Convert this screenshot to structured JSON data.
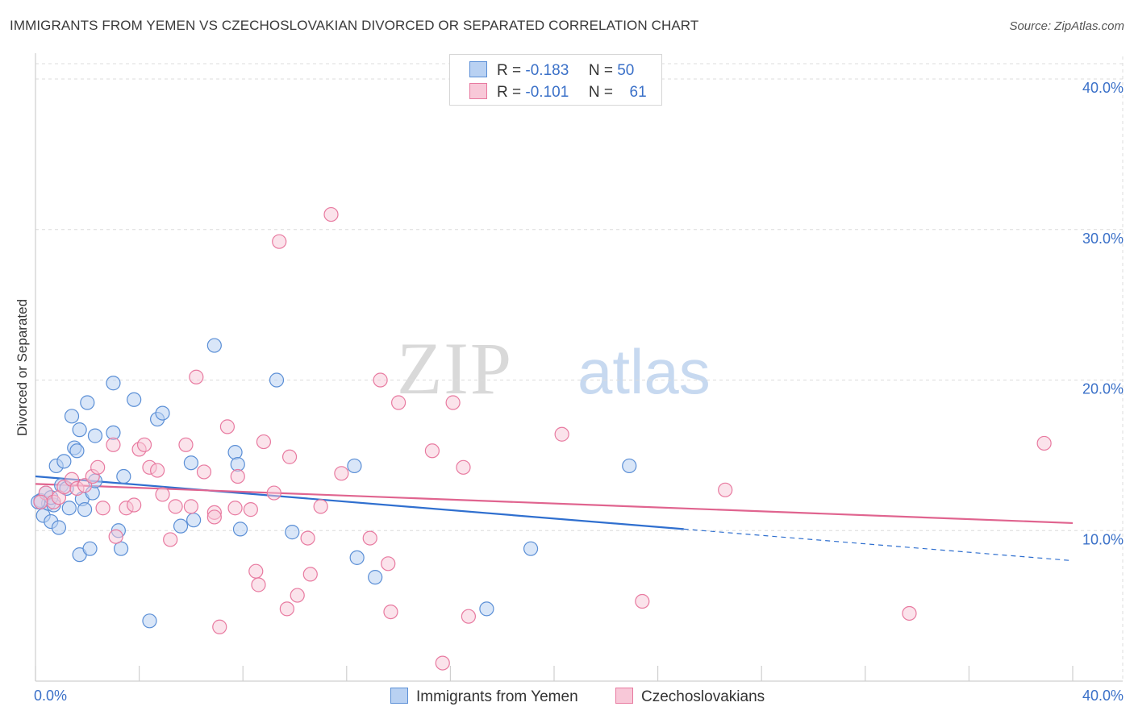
{
  "title": "IMMIGRANTS FROM YEMEN VS CZECHOSLOVAKIAN DIVORCED OR SEPARATED CORRELATION CHART",
  "source": "Source: ZipAtlas.com",
  "watermark": {
    "zip": "ZIP",
    "atlas": "atlas"
  },
  "legend": {
    "rows": [
      {
        "r_label": "R =",
        "r_value": "-0.183",
        "n_label": "N =",
        "n_value": "50"
      },
      {
        "r_label": "R =",
        "r_value": "-0.101",
        "n_label": "N =",
        "n_value": "61"
      }
    ]
  },
  "bottom_legend": {
    "series1": "Immigrants from Yemen",
    "series2": "Czechoslovakians"
  },
  "colors": {
    "blue": "#5b8fd6",
    "blue_fill": "#b9d1f2",
    "blue_line": "#2f6fcf",
    "pink": "#e87aa0",
    "pink_fill": "#f8c8d8",
    "pink_line": "#e0648f",
    "axis_text": "#3a70c8"
  },
  "chart_data": {
    "type": "scatter",
    "title": "IMMIGRANTS FROM YEMEN VS CZECHOSLOVAKIAN DIVORCED OR SEPARATED CORRELATION CHART",
    "xlabel": "",
    "ylabel": "Divorced or Separated",
    "xlim": [
      0,
      40
    ],
    "ylim": [
      0,
      41.5
    ],
    "x_tick_labels": [
      "0.0%",
      "40.0%"
    ],
    "y_ticks": [
      10,
      20,
      30,
      40
    ],
    "y_tick_labels": [
      "10.0%",
      "20.0%",
      "30.0%",
      "40.0%"
    ],
    "grid": true,
    "legend_position": "top-center",
    "series": [
      {
        "name": "Immigrants from Yemen",
        "r": -0.183,
        "n": 50,
        "trend": {
          "x0": 0,
          "y0": 13.6,
          "x1": 25,
          "y1": 10.1,
          "dashed_to_x": 40,
          "dashed_to_y": 8.0
        },
        "points": [
          [
            0.2,
            12.0
          ],
          [
            0.3,
            11.0
          ],
          [
            0.4,
            12.5
          ],
          [
            0.5,
            11.8
          ],
          [
            0.6,
            10.6
          ],
          [
            0.7,
            11.7
          ],
          [
            0.8,
            14.3
          ],
          [
            0.9,
            10.2
          ],
          [
            1.0,
            13.0
          ],
          [
            1.1,
            14.6
          ],
          [
            1.2,
            12.8
          ],
          [
            1.3,
            11.5
          ],
          [
            1.4,
            17.6
          ],
          [
            1.5,
            15.5
          ],
          [
            1.6,
            15.3
          ],
          [
            1.7,
            16.7
          ],
          [
            1.7,
            8.4
          ],
          [
            1.8,
            12.1
          ],
          [
            1.9,
            11.4
          ],
          [
            2.0,
            18.5
          ],
          [
            2.1,
            8.8
          ],
          [
            2.2,
            12.5
          ],
          [
            2.3,
            16.3
          ],
          [
            2.3,
            13.3
          ],
          [
            3.0,
            16.5
          ],
          [
            3.0,
            19.8
          ],
          [
            3.2,
            10.0
          ],
          [
            3.3,
            8.8
          ],
          [
            3.4,
            13.6
          ],
          [
            3.8,
            18.7
          ],
          [
            4.4,
            4.0
          ],
          [
            4.7,
            17.4
          ],
          [
            4.9,
            17.8
          ],
          [
            5.6,
            10.3
          ],
          [
            6.0,
            14.5
          ],
          [
            6.1,
            10.7
          ],
          [
            6.9,
            22.3
          ],
          [
            7.7,
            15.2
          ],
          [
            7.8,
            14.4
          ],
          [
            7.9,
            10.1
          ],
          [
            9.3,
            20.0
          ],
          [
            9.9,
            9.9
          ],
          [
            12.3,
            14.3
          ],
          [
            12.4,
            8.2
          ],
          [
            13.1,
            6.9
          ],
          [
            17.4,
            4.8
          ],
          [
            19.1,
            8.8
          ],
          [
            22.9,
            14.3
          ],
          [
            0.6,
            12.2
          ],
          [
            0.1,
            11.9
          ]
        ]
      },
      {
        "name": "Czechoslovakians",
        "r": -0.101,
        "n": 61,
        "trend": {
          "x0": 0,
          "y0": 13.1,
          "x1": 40,
          "y1": 10.5
        },
        "points": [
          [
            0.4,
            12.5
          ],
          [
            0.7,
            11.9
          ],
          [
            0.9,
            12.2
          ],
          [
            1.1,
            12.9
          ],
          [
            1.4,
            13.4
          ],
          [
            1.6,
            12.8
          ],
          [
            1.9,
            13.0
          ],
          [
            2.2,
            13.6
          ],
          [
            2.4,
            14.2
          ],
          [
            2.6,
            11.5
          ],
          [
            3.0,
            15.7
          ],
          [
            3.1,
            9.6
          ],
          [
            3.5,
            11.5
          ],
          [
            3.8,
            11.7
          ],
          [
            4.0,
            15.4
          ],
          [
            4.2,
            15.7
          ],
          [
            4.4,
            14.2
          ],
          [
            4.7,
            14.0
          ],
          [
            4.9,
            12.4
          ],
          [
            5.2,
            9.4
          ],
          [
            5.4,
            11.6
          ],
          [
            5.8,
            15.7
          ],
          [
            6.0,
            11.6
          ],
          [
            6.2,
            20.2
          ],
          [
            6.5,
            13.9
          ],
          [
            6.9,
            11.2
          ],
          [
            6.9,
            10.9
          ],
          [
            7.1,
            3.6
          ],
          [
            7.4,
            16.9
          ],
          [
            7.7,
            11.5
          ],
          [
            7.8,
            13.6
          ],
          [
            8.3,
            11.4
          ],
          [
            8.5,
            7.3
          ],
          [
            8.6,
            6.4
          ],
          [
            8.8,
            15.9
          ],
          [
            9.2,
            12.5
          ],
          [
            9.4,
            29.2
          ],
          [
            9.7,
            4.8
          ],
          [
            9.8,
            14.9
          ],
          [
            10.1,
            5.7
          ],
          [
            10.5,
            9.5
          ],
          [
            10.6,
            7.1
          ],
          [
            11.0,
            11.6
          ],
          [
            11.4,
            31.0
          ],
          [
            11.8,
            13.8
          ],
          [
            12.9,
            9.5
          ],
          [
            13.3,
            20.0
          ],
          [
            13.6,
            7.8
          ],
          [
            13.7,
            4.6
          ],
          [
            14.0,
            18.5
          ],
          [
            15.3,
            15.3
          ],
          [
            15.7,
            1.2
          ],
          [
            16.1,
            18.5
          ],
          [
            16.5,
            14.2
          ],
          [
            16.7,
            4.3
          ],
          [
            20.3,
            16.4
          ],
          [
            23.4,
            5.3
          ],
          [
            26.6,
            12.7
          ],
          [
            33.7,
            4.5
          ],
          [
            38.9,
            15.8
          ],
          [
            0.2,
            11.9
          ]
        ]
      }
    ]
  }
}
